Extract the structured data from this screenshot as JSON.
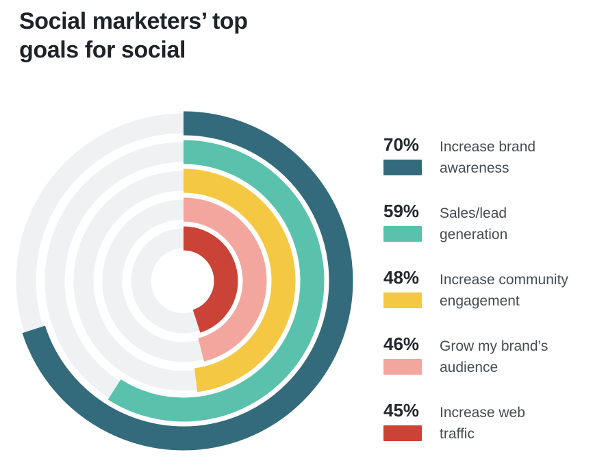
{
  "title": "Social marketers’ top\ngoals for social",
  "chart_data": {
    "type": "bar",
    "subtype": "radial-concentric-rings",
    "title": "Social marketers’ top goals for social",
    "unit": "%",
    "value_range": [
      0,
      100
    ],
    "start_angle_deg": 0,
    "direction": "clockwise",
    "ring_order": "outermost-to-innermost",
    "categories": [
      "Increase brand awareness",
      "Sales/lead generation",
      "Increase community engagement",
      "Grow my brand's audience",
      "Increase web traffic"
    ],
    "values": [
      70,
      59,
      48,
      46,
      45
    ],
    "colors": [
      "#336b7c",
      "#5ac2ac",
      "#f5c844",
      "#f2a69d",
      "#cb4237"
    ],
    "track_color": "#eff1f3",
    "legend_position": "right",
    "grid": false
  },
  "legend": {
    "items": [
      {
        "pct": "70%",
        "label": "Increase brand\nawareness"
      },
      {
        "pct": "59%",
        "label": "Sales/lead\ngeneration"
      },
      {
        "pct": "48%",
        "label": "Increase community\nengagement"
      },
      {
        "pct": "46%",
        "label": "Grow my brand’s\naudience"
      },
      {
        "pct": "45%",
        "label": "Increase web\ntraffic"
      }
    ]
  }
}
